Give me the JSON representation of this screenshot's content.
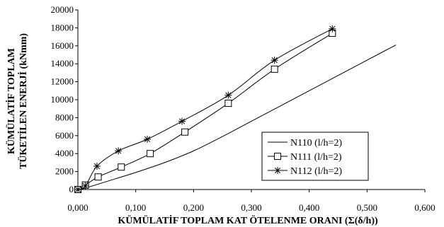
{
  "chart_data": {
    "type": "line",
    "xlabel": "KÜMÜLATİF TOPLAM KAT ÖTELENME ORANI (Σ(δ/h))",
    "ylabel_lines": [
      "KÜMÜLATİF TOPLAM",
      "TÜKETİLEN ENERJİ (kNmm)"
    ],
    "xlim": [
      0,
      0.6
    ],
    "ylim": [
      0,
      20000
    ],
    "x_ticks": [
      "0,000",
      "0,100",
      "0,200",
      "0,300",
      "0,400",
      "0,500",
      "0,600"
    ],
    "x_tick_values": [
      0,
      0.1,
      0.2,
      0.3,
      0.4,
      0.5,
      0.6
    ],
    "y_ticks": [
      "0",
      "2000",
      "4000",
      "6000",
      "8000",
      "10000",
      "12000",
      "14000",
      "16000",
      "18000",
      "20000"
    ],
    "y_tick_values": [
      0,
      2000,
      4000,
      6000,
      8000,
      10000,
      12000,
      14000,
      16000,
      18000,
      20000
    ],
    "grid": false,
    "legend_position": "bottom-right",
    "series": [
      {
        "name": "N110 (l/h=2)",
        "marker": "none",
        "x": [
          0.0,
          0.01,
          0.02,
          0.05,
          0.1,
          0.15,
          0.2,
          0.25,
          0.3,
          0.35,
          0.4,
          0.45,
          0.5,
          0.55
        ],
        "y": [
          0,
          100,
          300,
          900,
          1900,
          3000,
          4300,
          5900,
          7600,
          9300,
          11000,
          12700,
          14400,
          16100
        ]
      },
      {
        "name": "N111 (l/h=2)",
        "marker": "square",
        "x": [
          0.0,
          0.013,
          0.035,
          0.075,
          0.125,
          0.185,
          0.26,
          0.34,
          0.44
        ],
        "y": [
          0,
          500,
          1400,
          2500,
          4000,
          6400,
          9600,
          13400,
          17400
        ]
      },
      {
        "name": "N112 (l/h=2)",
        "marker": "star",
        "x": [
          0.0,
          0.013,
          0.033,
          0.07,
          0.12,
          0.18,
          0.26,
          0.34,
          0.44
        ],
        "y": [
          0,
          400,
          2600,
          4300,
          5600,
          7600,
          10500,
          14400,
          17900
        ]
      }
    ]
  }
}
